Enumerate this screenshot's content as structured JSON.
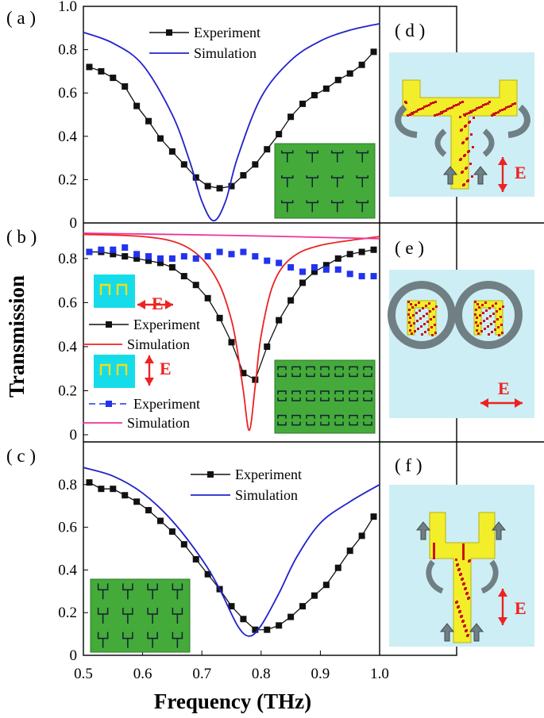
{
  "figure": {
    "ylabel": "Transmission",
    "xlabel": "Frequency (THz)",
    "x_ticks": [
      "0.5",
      "0.6",
      "0.7",
      "0.8",
      "0.9",
      "1.0"
    ],
    "colors": {
      "experiment": "#111111",
      "simulation_blue": "#2222cc",
      "simulation_red": "#ee2222",
      "experiment_blue": "#2233ee",
      "simulation_pink": "#ee3399",
      "inset_green": "#44aa3a",
      "unit_cell_bg": "#cdeef4",
      "arrow_red": "#ee2222",
      "current_yellow": "#f2ee2a",
      "current_red": "#cc1111",
      "flow_arrow_grey": "#6f7f84"
    },
    "field_label": "E"
  },
  "chart_data": [
    {
      "panel": "(a)",
      "type": "line",
      "xlim": [
        0.5,
        1.0
      ],
      "ylim": [
        0,
        1.0
      ],
      "y_ticks": [
        "0",
        "0.2",
        "0.4",
        "0.6",
        "0.8",
        "1.0"
      ],
      "legend_position": "top-center",
      "series": [
        {
          "name": "Experiment",
          "style": "line-square",
          "color": "#111111",
          "x": [
            0.51,
            0.53,
            0.55,
            0.57,
            0.59,
            0.61,
            0.63,
            0.65,
            0.67,
            0.69,
            0.71,
            0.73,
            0.75,
            0.77,
            0.79,
            0.81,
            0.83,
            0.85,
            0.87,
            0.89,
            0.91,
            0.93,
            0.95,
            0.97,
            0.99
          ],
          "y": [
            0.72,
            0.7,
            0.67,
            0.63,
            0.54,
            0.47,
            0.39,
            0.33,
            0.27,
            0.21,
            0.17,
            0.16,
            0.17,
            0.22,
            0.27,
            0.34,
            0.41,
            0.49,
            0.55,
            0.59,
            0.62,
            0.66,
            0.69,
            0.73,
            0.79
          ]
        },
        {
          "name": "Simulation",
          "style": "line",
          "color": "#2222cc",
          "x": [
            0.5,
            0.55,
            0.6,
            0.65,
            0.68,
            0.7,
            0.72,
            0.74,
            0.76,
            0.8,
            0.85,
            0.9,
            0.95,
            1.0
          ],
          "y": [
            0.88,
            0.83,
            0.73,
            0.5,
            0.28,
            0.1,
            0.01,
            0.1,
            0.3,
            0.58,
            0.75,
            0.84,
            0.89,
            0.92
          ]
        }
      ]
    },
    {
      "panel": "(b)",
      "type": "line",
      "xlim": [
        0.5,
        1.0
      ],
      "ylim": [
        0,
        0.94
      ],
      "y_ticks": [
        "0",
        "0.2",
        "0.4",
        "0.6",
        "0.8"
      ],
      "legend_position": "left",
      "series": [
        {
          "name": "Experiment",
          "style": "line-square",
          "color": "#111111",
          "x": [
            0.51,
            0.53,
            0.55,
            0.57,
            0.59,
            0.61,
            0.63,
            0.65,
            0.67,
            0.69,
            0.71,
            0.73,
            0.75,
            0.77,
            0.79,
            0.81,
            0.83,
            0.85,
            0.87,
            0.89,
            0.91,
            0.93,
            0.95,
            0.97,
            0.99
          ],
          "y": [
            0.83,
            0.83,
            0.82,
            0.81,
            0.8,
            0.79,
            0.78,
            0.76,
            0.72,
            0.68,
            0.62,
            0.53,
            0.42,
            0.28,
            0.25,
            0.4,
            0.52,
            0.61,
            0.69,
            0.74,
            0.77,
            0.8,
            0.82,
            0.83,
            0.84
          ]
        },
        {
          "name": "Simulation",
          "style": "line",
          "color": "#ee2222",
          "x": [
            0.5,
            0.6,
            0.66,
            0.7,
            0.73,
            0.75,
            0.76,
            0.77,
            0.78,
            0.79,
            0.8,
            0.82,
            0.85,
            0.9,
            1.0
          ],
          "y": [
            0.91,
            0.9,
            0.87,
            0.8,
            0.68,
            0.52,
            0.38,
            0.2,
            0.02,
            0.22,
            0.45,
            0.68,
            0.8,
            0.86,
            0.9
          ]
        },
        {
          "name": "Experiment",
          "style": "dash-square",
          "color": "#2233ee",
          "x": [
            0.51,
            0.53,
            0.55,
            0.57,
            0.59,
            0.61,
            0.63,
            0.65,
            0.67,
            0.69,
            0.71,
            0.73,
            0.75,
            0.77,
            0.79,
            0.81,
            0.83,
            0.85,
            0.87,
            0.89,
            0.91,
            0.93,
            0.95,
            0.97,
            0.99
          ],
          "y": [
            0.83,
            0.84,
            0.84,
            0.85,
            0.82,
            0.81,
            0.8,
            0.8,
            0.81,
            0.8,
            0.81,
            0.83,
            0.82,
            0.83,
            0.81,
            0.79,
            0.78,
            0.76,
            0.74,
            0.76,
            0.75,
            0.75,
            0.73,
            0.72,
            0.72
          ]
        },
        {
          "name": "Simulation",
          "style": "line",
          "color": "#ee3399",
          "x": [
            0.5,
            0.75,
            1.0
          ],
          "y": [
            0.915,
            0.905,
            0.89
          ]
        }
      ]
    },
    {
      "panel": "(c)",
      "type": "line",
      "xlim": [
        0.5,
        1.0
      ],
      "ylim": [
        0,
        1.0
      ],
      "y_ticks": [
        "0",
        "0.2",
        "0.4",
        "0.6",
        "0.8"
      ],
      "legend_position": "top-right",
      "series": [
        {
          "name": "Experiment",
          "style": "line-square",
          "color": "#111111",
          "x": [
            0.51,
            0.53,
            0.55,
            0.57,
            0.59,
            0.61,
            0.63,
            0.65,
            0.67,
            0.69,
            0.71,
            0.73,
            0.75,
            0.77,
            0.79,
            0.81,
            0.83,
            0.85,
            0.87,
            0.89,
            0.91,
            0.93,
            0.95,
            0.97,
            0.99
          ],
          "y": [
            0.81,
            0.78,
            0.78,
            0.75,
            0.72,
            0.68,
            0.63,
            0.58,
            0.52,
            0.45,
            0.38,
            0.31,
            0.23,
            0.17,
            0.12,
            0.12,
            0.14,
            0.18,
            0.23,
            0.28,
            0.33,
            0.41,
            0.49,
            0.56,
            0.65
          ]
        },
        {
          "name": "Simulation",
          "style": "line",
          "color": "#2222cc",
          "x": [
            0.5,
            0.55,
            0.6,
            0.65,
            0.7,
            0.73,
            0.76,
            0.78,
            0.8,
            0.83,
            0.86,
            0.9,
            0.95,
            1.0
          ],
          "y": [
            0.88,
            0.84,
            0.76,
            0.63,
            0.45,
            0.31,
            0.14,
            0.09,
            0.14,
            0.29,
            0.46,
            0.62,
            0.72,
            0.8
          ]
        }
      ]
    }
  ],
  "panels": {
    "a": {
      "label": "( a )"
    },
    "b": {
      "label": "( b )"
    },
    "c": {
      "label": "( c )"
    },
    "d": {
      "label": "( d )"
    },
    "e": {
      "label": "( e )"
    },
    "f": {
      "label": "( f )"
    }
  }
}
